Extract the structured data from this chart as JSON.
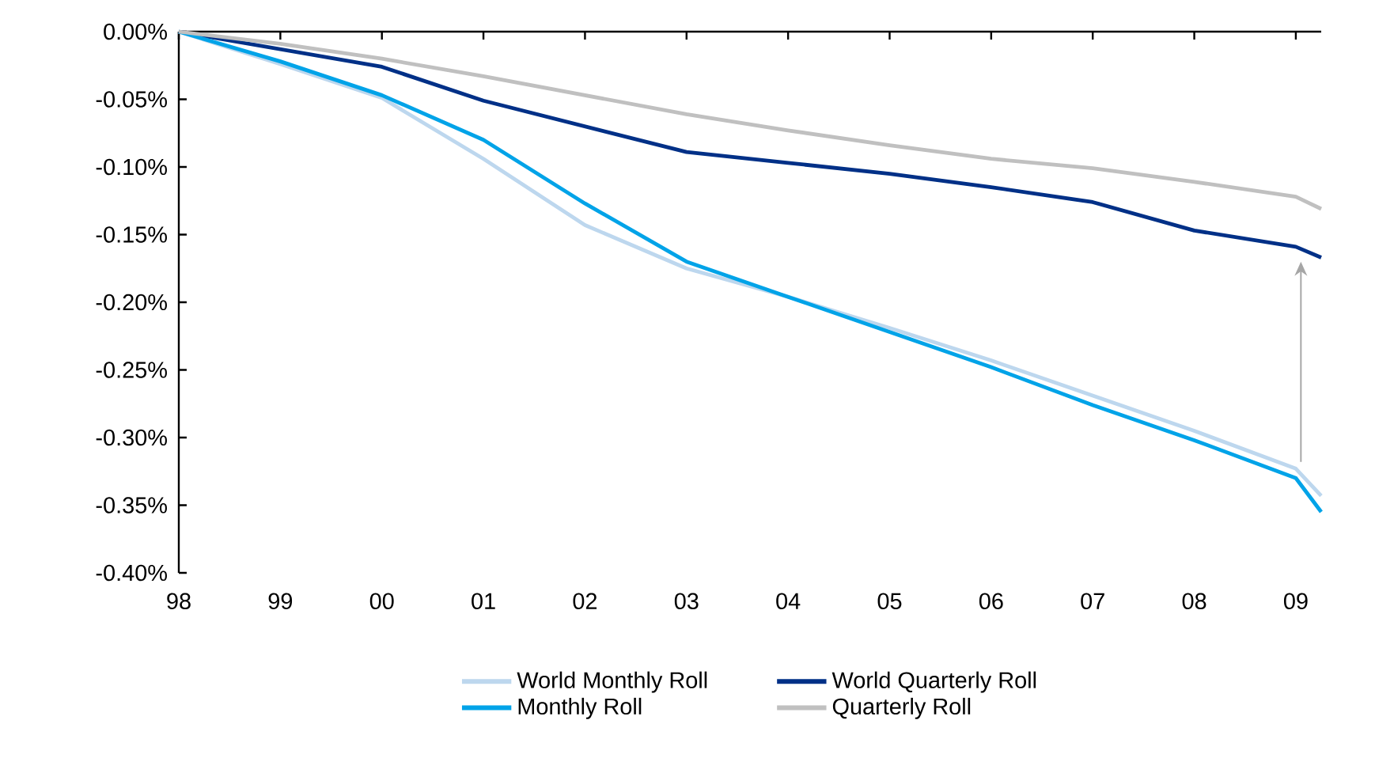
{
  "chart_data": {
    "type": "line",
    "x": [
      1998,
      1999,
      2000,
      2001,
      2002,
      2003,
      2004,
      2005,
      2006,
      2007,
      2008,
      2009,
      2009.25
    ],
    "series": [
      {
        "name": "World Monthly Roll",
        "color": "#bdd7ee",
        "values": [
          0,
          -0.024,
          -0.049,
          -0.094,
          -0.143,
          -0.175,
          -0.196,
          -0.219,
          -0.243,
          -0.269,
          -0.295,
          -0.323,
          -0.343
        ]
      },
      {
        "name": "World Quarterly Roll",
        "color": "#003087",
        "values": [
          0,
          -0.013,
          -0.026,
          -0.051,
          -0.07,
          -0.089,
          -0.097,
          -0.105,
          -0.115,
          -0.126,
          -0.147,
          -0.159,
          -0.167
        ]
      },
      {
        "name": "Monthly Roll",
        "color": "#00a3e8",
        "values": [
          0,
          -0.022,
          -0.047,
          -0.08,
          -0.127,
          -0.17,
          -0.196,
          -0.222,
          -0.248,
          -0.276,
          -0.302,
          -0.33,
          -0.355
        ]
      },
      {
        "name": "Quarterly Roll",
        "color": "#c0c0c0",
        "values": [
          0,
          -0.009,
          -0.02,
          -0.033,
          -0.047,
          -0.061,
          -0.073,
          -0.084,
          -0.094,
          -0.101,
          -0.111,
          -0.122,
          -0.131
        ]
      }
    ],
    "xlim": [
      1998,
      2009.25
    ],
    "xticks": [
      {
        "value": 1998,
        "label": "98"
      },
      {
        "value": 1999,
        "label": "99"
      },
      {
        "value": 2000,
        "label": "00"
      },
      {
        "value": 2001,
        "label": "01"
      },
      {
        "value": 2002,
        "label": "02"
      },
      {
        "value": 2003,
        "label": "03"
      },
      {
        "value": 2004,
        "label": "04"
      },
      {
        "value": 2005,
        "label": "05"
      },
      {
        "value": 2006,
        "label": "06"
      },
      {
        "value": 2007,
        "label": "07"
      },
      {
        "value": 2008,
        "label": "08"
      },
      {
        "value": 2009,
        "label": "09"
      }
    ],
    "ylim": [
      -0.4,
      0
    ],
    "yticks": [
      {
        "value": -0.4,
        "label": "-0.40%"
      },
      {
        "value": -0.35,
        "label": "-0.35%"
      },
      {
        "value": -0.3,
        "label": "-0.30%"
      },
      {
        "value": -0.25,
        "label": "-0.25%"
      },
      {
        "value": -0.2,
        "label": "-0.20%"
      },
      {
        "value": -0.15,
        "label": "-0.15%"
      },
      {
        "value": -0.1,
        "label": "-0.10%"
      },
      {
        "value": -0.05,
        "label": "-0.05%"
      },
      {
        "value": 0,
        "label": "0.00%"
      }
    ],
    "legend": "bottom",
    "grid": false,
    "marker": "none",
    "line_style": "solid"
  }
}
